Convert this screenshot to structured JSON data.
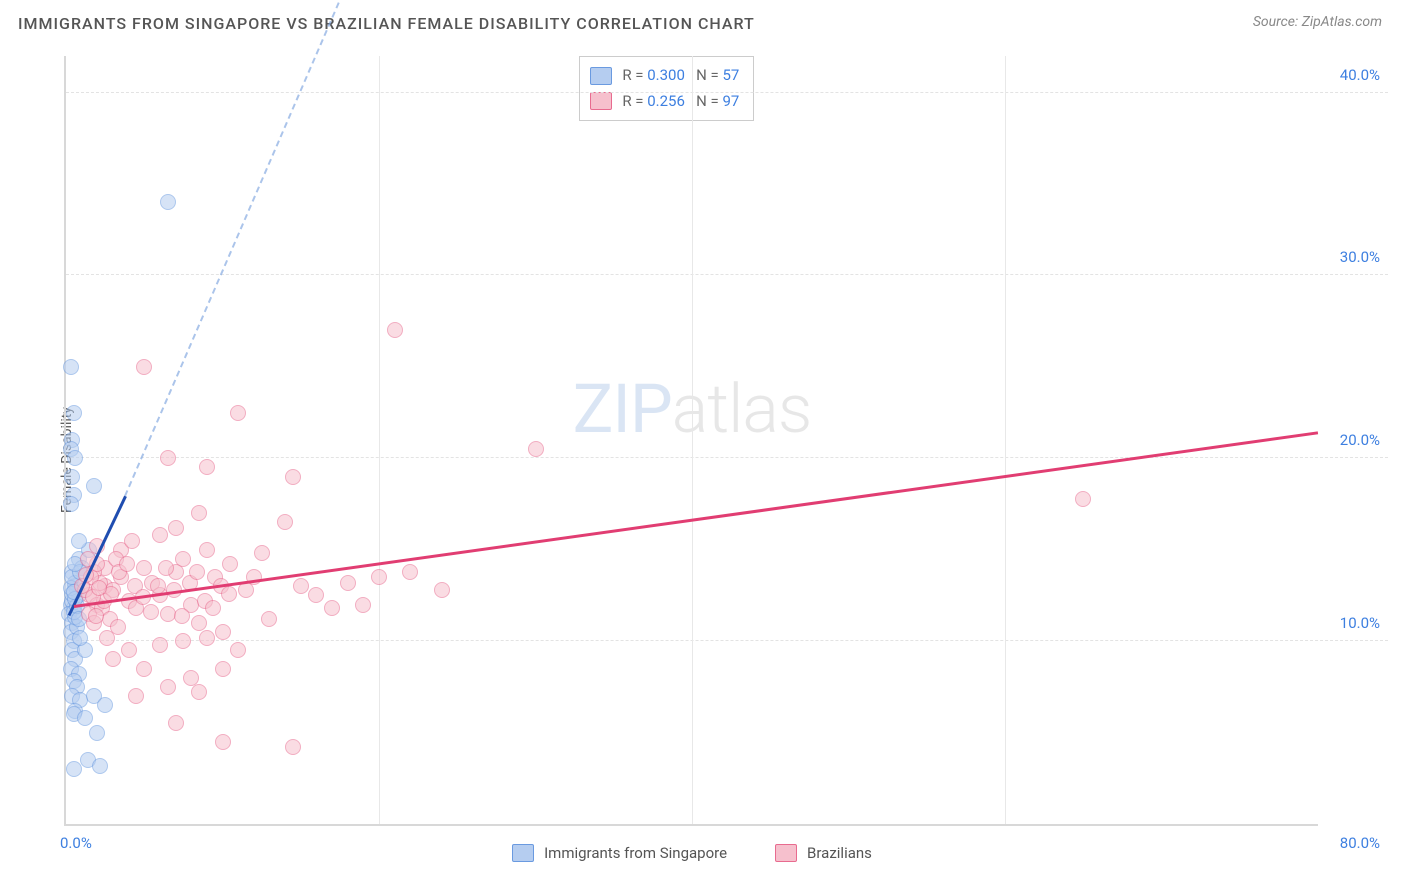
{
  "header": {
    "title": "IMMIGRANTS FROM SINGAPORE VS BRAZILIAN FEMALE DISABILITY CORRELATION CHART",
    "source": "Source: ZipAtlas.com"
  },
  "chart": {
    "type": "scatter",
    "ylabel": "Female Disability",
    "xlim": [
      0,
      80
    ],
    "ylim": [
      0,
      42
    ],
    "yticks": [
      10,
      20,
      30,
      40
    ],
    "ytick_labels": [
      "10.0%",
      "20.0%",
      "30.0%",
      "40.0%"
    ],
    "xtick_left": "0.0%",
    "xtick_right": "80.0%",
    "xgrid": [
      20,
      40,
      60
    ],
    "grid_color": "#e3e3e3",
    "background_color": "#ffffff",
    "watermark": {
      "bold": "ZIP",
      "thin": "atlas"
    },
    "series": [
      {
        "id": "singapore",
        "label": "Immigrants from Singapore",
        "fill": "#b5cdf0",
        "stroke": "#6a9ae0",
        "trend_color": "#1f4db0",
        "trend_dash_color": "#7fa6e0",
        "R": "0.300",
        "N": "57",
        "trend": {
          "x1": 0.2,
          "y1": 11.5,
          "x2": 3.8,
          "y2": 18.0,
          "dash_x2": 20.0,
          "dash_y2": 50.0
        },
        "points": [
          [
            0.3,
            12.0
          ],
          [
            0.5,
            11.8
          ],
          [
            0.4,
            12.2
          ],
          [
            0.6,
            13.0
          ],
          [
            0.2,
            11.5
          ],
          [
            0.8,
            12.5
          ],
          [
            0.4,
            11.0
          ],
          [
            0.7,
            12.8
          ],
          [
            0.3,
            10.5
          ],
          [
            0.5,
            10.0
          ],
          [
            0.4,
            9.5
          ],
          [
            0.6,
            9.0
          ],
          [
            0.3,
            8.5
          ],
          [
            0.8,
            8.2
          ],
          [
            0.5,
            7.8
          ],
          [
            0.7,
            7.5
          ],
          [
            0.4,
            7.0
          ],
          [
            0.9,
            6.8
          ],
          [
            0.6,
            6.2
          ],
          [
            0.5,
            6.0
          ],
          [
            1.2,
            5.8
          ],
          [
            0.3,
            25.0
          ],
          [
            0.5,
            22.5
          ],
          [
            0.4,
            21.0
          ],
          [
            0.3,
            20.5
          ],
          [
            0.6,
            20.0
          ],
          [
            0.4,
            19.0
          ],
          [
            0.5,
            18.0
          ],
          [
            0.3,
            17.5
          ],
          [
            0.8,
            14.5
          ],
          [
            0.4,
            13.8
          ],
          [
            0.6,
            13.2
          ],
          [
            6.5,
            34.0
          ],
          [
            1.8,
            18.5
          ],
          [
            1.5,
            15.0
          ],
          [
            1.2,
            9.5
          ],
          [
            1.8,
            7.0
          ],
          [
            2.5,
            6.5
          ],
          [
            2.0,
            5.0
          ],
          [
            0.5,
            3.0
          ],
          [
            1.4,
            3.5
          ],
          [
            2.2,
            3.2
          ],
          [
            0.8,
            15.5
          ],
          [
            1.0,
            14.0
          ],
          [
            0.7,
            10.8
          ],
          [
            0.9,
            10.2
          ],
          [
            0.6,
            11.3
          ],
          [
            0.5,
            11.6
          ],
          [
            0.4,
            12.6
          ],
          [
            0.3,
            12.9
          ],
          [
            0.7,
            11.9
          ],
          [
            0.8,
            11.2
          ],
          [
            0.6,
            12.3
          ],
          [
            0.5,
            12.7
          ],
          [
            0.4,
            13.5
          ],
          [
            0.9,
            13.8
          ],
          [
            0.6,
            14.2
          ]
        ]
      },
      {
        "id": "brazilians",
        "label": "Brazilians",
        "fill": "#f6c0cd",
        "stroke": "#e86b8f",
        "trend_color": "#e13d72",
        "R": "0.256",
        "N": "97",
        "trend": {
          "x1": 0.5,
          "y1": 12.0,
          "x2": 80.0,
          "y2": 21.5
        },
        "points": [
          [
            1.5,
            12.5
          ],
          [
            2.0,
            12.0
          ],
          [
            2.5,
            13.0
          ],
          [
            3.0,
            12.8
          ],
          [
            3.5,
            13.5
          ],
          [
            4.0,
            12.2
          ],
          [
            4.5,
            11.8
          ],
          [
            5.0,
            14.0
          ],
          [
            5.5,
            13.2
          ],
          [
            6.0,
            12.5
          ],
          [
            6.5,
            11.5
          ],
          [
            7.0,
            13.8
          ],
          [
            7.5,
            14.5
          ],
          [
            8.0,
            12.0
          ],
          [
            8.5,
            11.0
          ],
          [
            9.0,
            15.0
          ],
          [
            9.5,
            13.5
          ],
          [
            10.0,
            10.5
          ],
          [
            10.5,
            14.2
          ],
          [
            11.0,
            9.5
          ],
          [
            11.5,
            12.8
          ],
          [
            12.0,
            13.5
          ],
          [
            12.5,
            14.8
          ],
          [
            13.0,
            11.2
          ],
          [
            14.0,
            16.5
          ],
          [
            15.0,
            13.0
          ],
          [
            16.0,
            12.5
          ],
          [
            17.0,
            11.8
          ],
          [
            18.0,
            13.2
          ],
          [
            19.0,
            12.0
          ],
          [
            20.0,
            13.5
          ],
          [
            22.0,
            13.8
          ],
          [
            24.0,
            12.8
          ],
          [
            5.0,
            25.0
          ],
          [
            3.5,
            15.0
          ],
          [
            4.2,
            15.5
          ],
          [
            6.0,
            15.8
          ],
          [
            7.0,
            16.2
          ],
          [
            8.5,
            17.0
          ],
          [
            6.5,
            20.0
          ],
          [
            9.0,
            19.5
          ],
          [
            11.0,
            22.5
          ],
          [
            21.0,
            27.0
          ],
          [
            30.0,
            20.5
          ],
          [
            14.5,
            19.0
          ],
          [
            3.0,
            9.0
          ],
          [
            4.0,
            9.5
          ],
          [
            5.0,
            8.5
          ],
          [
            6.0,
            9.8
          ],
          [
            7.5,
            10.0
          ],
          [
            8.0,
            8.0
          ],
          [
            9.0,
            10.2
          ],
          [
            10.0,
            8.5
          ],
          [
            4.5,
            7.0
          ],
          [
            6.5,
            7.5
          ],
          [
            8.5,
            7.2
          ],
          [
            10.0,
            4.5
          ],
          [
            14.5,
            4.2
          ],
          [
            7.0,
            5.5
          ],
          [
            2.5,
            14.0
          ],
          [
            3.2,
            14.5
          ],
          [
            2.0,
            15.2
          ],
          [
            1.8,
            13.8
          ],
          [
            2.2,
            13.2
          ],
          [
            1.5,
            11.5
          ],
          [
            1.8,
            11.0
          ],
          [
            2.3,
            11.8
          ],
          [
            2.8,
            11.2
          ],
          [
            3.3,
            10.8
          ],
          [
            1.2,
            12.8
          ],
          [
            1.6,
            13.5
          ],
          [
            2.0,
            14.2
          ],
          [
            2.4,
            12.2
          ],
          [
            2.9,
            12.6
          ],
          [
            3.4,
            13.8
          ],
          [
            3.9,
            14.2
          ],
          [
            4.4,
            13.0
          ],
          [
            4.9,
            12.4
          ],
          [
            5.4,
            11.6
          ],
          [
            5.9,
            13.0
          ],
          [
            6.4,
            14.0
          ],
          [
            6.9,
            12.8
          ],
          [
            7.4,
            11.4
          ],
          [
            7.9,
            13.2
          ],
          [
            8.4,
            13.8
          ],
          [
            8.9,
            12.2
          ],
          [
            9.4,
            11.8
          ],
          [
            9.9,
            13.0
          ],
          [
            10.4,
            12.6
          ],
          [
            65.0,
            17.8
          ],
          [
            1.0,
            13.0
          ],
          [
            1.3,
            13.6
          ],
          [
            1.7,
            12.4
          ],
          [
            2.1,
            12.9
          ],
          [
            1.4,
            14.5
          ],
          [
            1.9,
            11.4
          ],
          [
            2.6,
            10.2
          ]
        ]
      }
    ],
    "bottom_legend": [
      {
        "series": 0
      },
      {
        "series": 1
      }
    ]
  }
}
